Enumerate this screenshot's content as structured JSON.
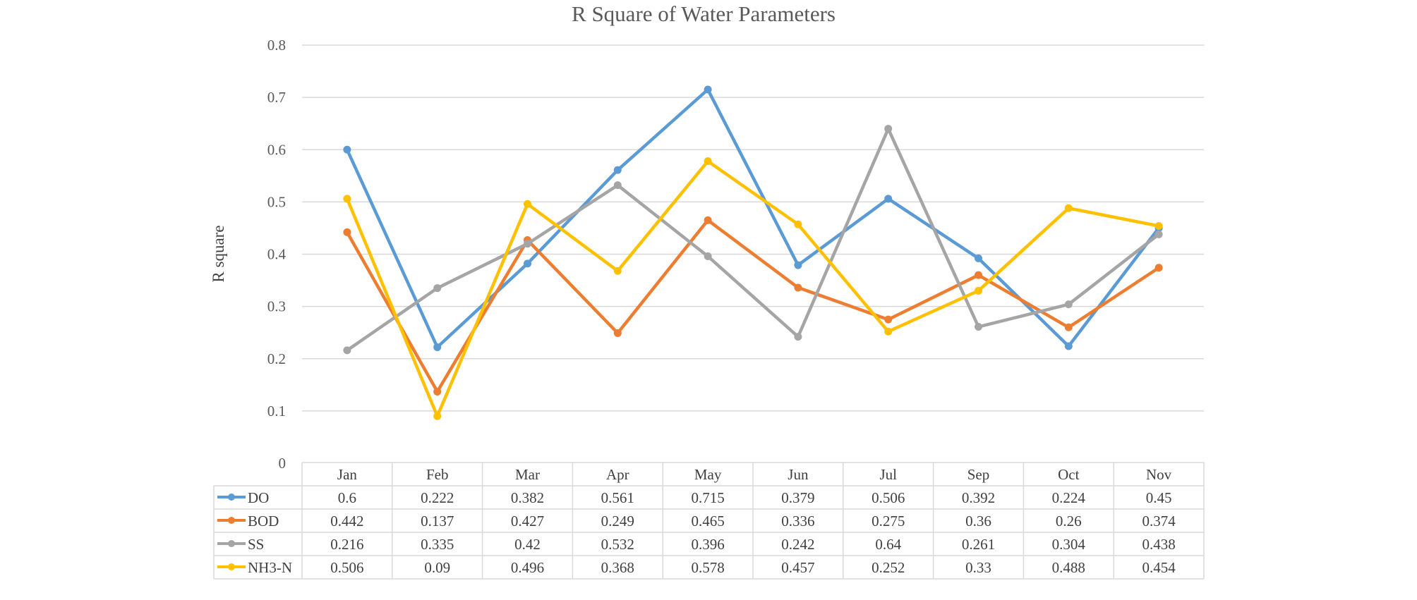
{
  "chart_data": {
    "type": "line",
    "title": "R Square of Water Parameters",
    "xlabel": "",
    "ylabel": "R square",
    "ylim": [
      0,
      0.8
    ],
    "yticks": [
      "0",
      "0.1",
      "0.2",
      "0.3",
      "0.4",
      "0.5",
      "0.6",
      "0.7",
      "0.8"
    ],
    "grid": true,
    "legend": "data-table-below",
    "categories": [
      "Jan",
      "Feb",
      "Mar",
      "Apr",
      "May",
      "Jun",
      "Jul",
      "Sep",
      "Oct",
      "Nov"
    ],
    "series": [
      {
        "name": "DO",
        "color": "#5b9bd5",
        "values": [
          0.6,
          0.222,
          0.382,
          0.561,
          0.715,
          0.379,
          0.506,
          0.392,
          0.224,
          0.45
        ],
        "labels": [
          "0.6",
          "0.222",
          "0.382",
          "0.561",
          "0.715",
          "0.379",
          "0.506",
          "0.392",
          "0.224",
          "0.45"
        ]
      },
      {
        "name": "BOD",
        "color": "#ed7d31",
        "values": [
          0.442,
          0.137,
          0.427,
          0.249,
          0.465,
          0.336,
          0.275,
          0.36,
          0.26,
          0.374
        ],
        "labels": [
          "0.442",
          "0.137",
          "0.427",
          "0.249",
          "0.465",
          "0.336",
          "0.275",
          "0.36",
          "0.26",
          "0.374"
        ]
      },
      {
        "name": "SS",
        "color": "#a5a5a5",
        "values": [
          0.216,
          0.335,
          0.42,
          0.532,
          0.396,
          0.242,
          0.64,
          0.261,
          0.304,
          0.438
        ],
        "labels": [
          "0.216",
          "0.335",
          "0.42",
          "0.532",
          "0.396",
          "0.242",
          "0.64",
          "0.261",
          "0.304",
          "0.438"
        ]
      },
      {
        "name": "NH3-N",
        "color": "#ffc000",
        "values": [
          0.506,
          0.09,
          0.496,
          0.368,
          0.578,
          0.457,
          0.252,
          0.33,
          0.488,
          0.454
        ],
        "labels": [
          "0.506",
          "0.09",
          "0.496",
          "0.368",
          "0.578",
          "0.457",
          "0.252",
          "0.33",
          "0.488",
          "0.454"
        ]
      }
    ]
  }
}
